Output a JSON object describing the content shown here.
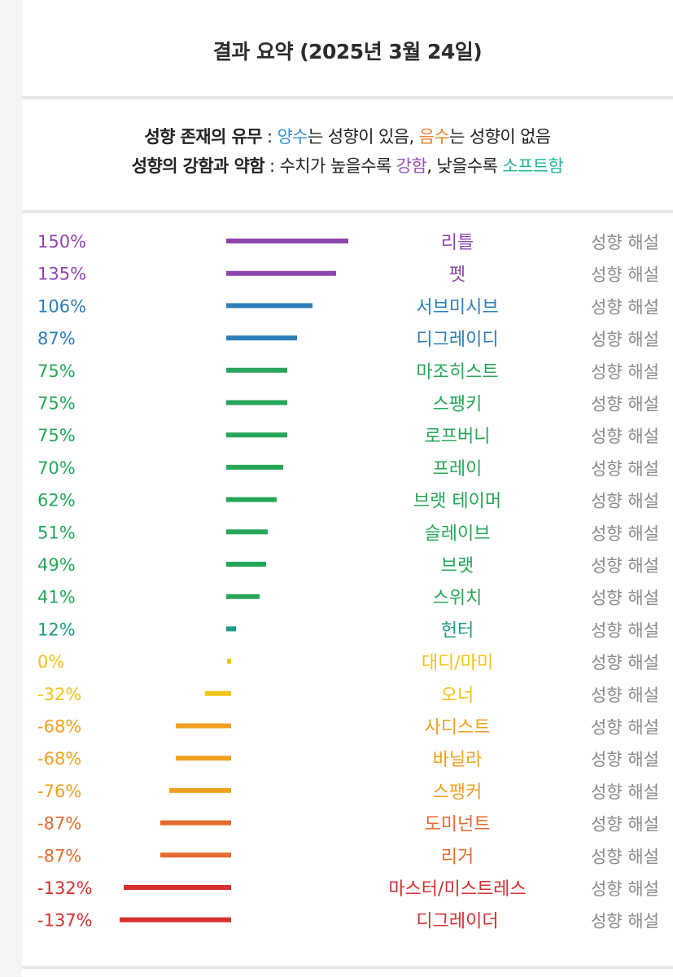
{
  "title": "결과 요약 (2025년 3월 24일)",
  "legend": {
    "line1": {
      "heading": "성향 존재의 유무",
      "sep": " : ",
      "pos_word": "양수",
      "pos_rest": "는 성향이 있음, ",
      "neg_word": "음수",
      "neg_rest": "는 성향이 없음"
    },
    "line2": {
      "heading": "성향의 강함과 약함",
      "sep": " : ",
      "text1": "수치가 높을수록 ",
      "strong_word": "강함",
      "text2": ", 낮을수록 ",
      "soft_word": "소프트함"
    }
  },
  "link_label": "성향 해설",
  "colors": {
    "purple": "#8e44ad",
    "blue": "#2e7fb8",
    "green": "#27a65a",
    "teal": "#1e9a85",
    "yellow": "#f2c217",
    "amber": "#f0a020",
    "orange": "#e66a2c",
    "red": "#d62f2f",
    "link": "#8a8a8a"
  },
  "chart_data": {
    "type": "bar",
    "orientation": "horizontal",
    "unit": "%",
    "categories": [
      "리틀",
      "펫",
      "서브미시브",
      "디그레이디",
      "마조히스트",
      "스팽키",
      "로프버니",
      "프레이",
      "브랫 테이머",
      "슬레이브",
      "브랫",
      "스위치",
      "헌터",
      "대디/마미",
      "오너",
      "사디스트",
      "바닐라",
      "스팽커",
      "도미넌트",
      "리거",
      "마스터/미스트레스",
      "디그레이더"
    ],
    "values": [
      150,
      135,
      106,
      87,
      75,
      75,
      75,
      70,
      62,
      51,
      49,
      41,
      12,
      0,
      -32,
      -68,
      -68,
      -76,
      -87,
      -87,
      -132,
      -137
    ],
    "value_labels": [
      "150%",
      "135%",
      "106%",
      "87%",
      "75%",
      "75%",
      "75%",
      "70%",
      "62%",
      "51%",
      "49%",
      "41%",
      "12%",
      "0%",
      "-32%",
      "-68%",
      "-68%",
      "-76%",
      "-87%",
      "-87%",
      "-132%",
      "-137%"
    ],
    "colors": [
      "purple",
      "purple",
      "blue",
      "blue",
      "green",
      "green",
      "green",
      "green",
      "green",
      "green",
      "green",
      "green",
      "teal",
      "yellow",
      "yellow",
      "amber",
      "amber",
      "amber",
      "orange",
      "orange",
      "red",
      "red"
    ]
  }
}
